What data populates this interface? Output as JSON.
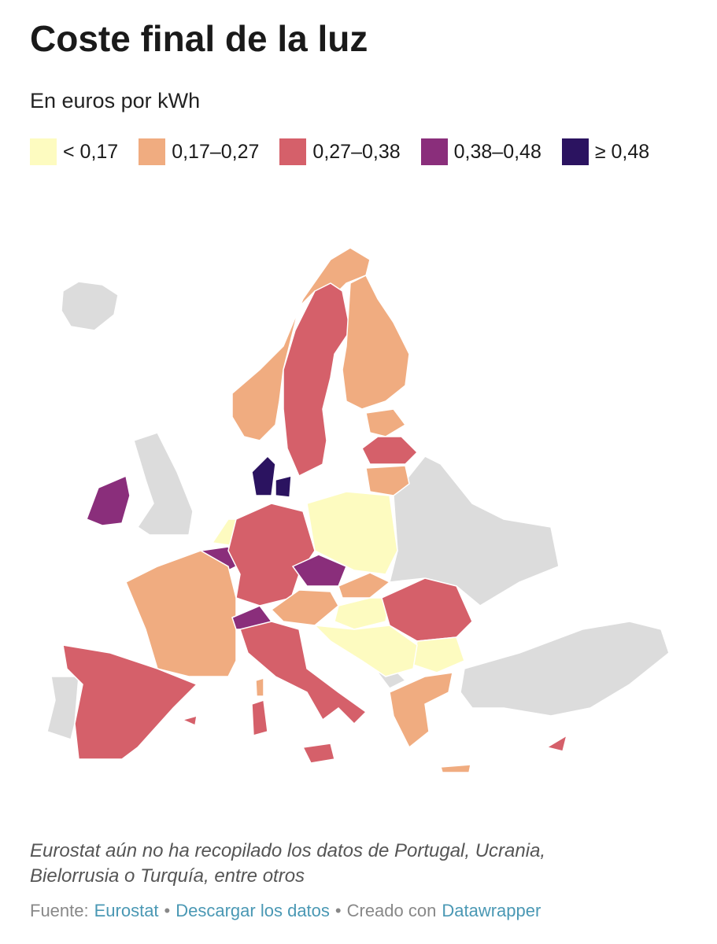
{
  "header": {
    "title": "Coste final de la luz",
    "subtitle": "En euros por kWh"
  },
  "legend": [
    {
      "label": "< 0,17",
      "color": "#fdfbc0"
    },
    {
      "label": "0,17–0,27",
      "color": "#f0ac80"
    },
    {
      "label": "0,27–0,38",
      "color": "#d5606a"
    },
    {
      "label": "0,38–0,48",
      "color": "#8a2e7b"
    },
    {
      "label": "≥ 0,48",
      "color": "#2b1360"
    }
  ],
  "no_data_color": "#dcdcdc",
  "note": [
    "Eurostat aún no ha recopilado los datos de Portugal, Ucrania,",
    "Bielorrusia o Turquía, entre otros"
  ],
  "footer": {
    "source_label": "Fuente:",
    "source": "Eurostat",
    "separator": "•",
    "download": "Descargar los datos",
    "made_with": "Creado con",
    "tool": "Datawrapper"
  }
}
